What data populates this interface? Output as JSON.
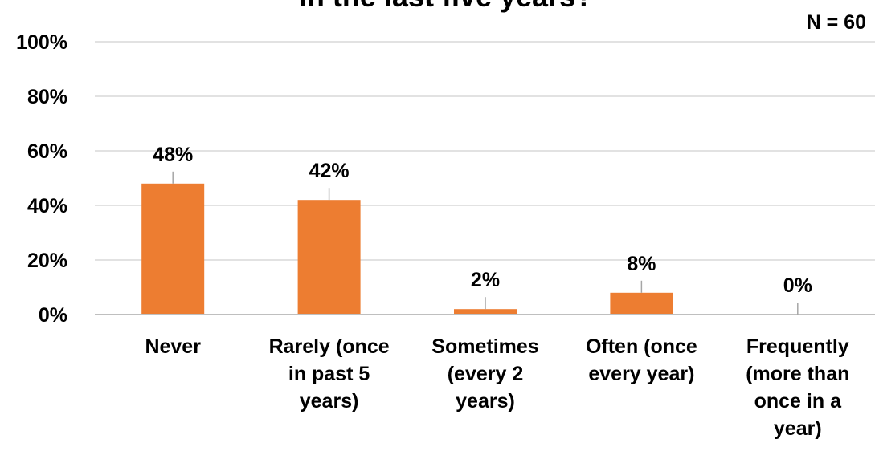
{
  "chart_data": {
    "type": "bar",
    "title": "in the last five years?",
    "sample_size": "N = 60",
    "categories": [
      [
        "Never"
      ],
      [
        "Rarely (once",
        "in past 5",
        "years)"
      ],
      [
        "Sometimes",
        "(every 2",
        "years)"
      ],
      [
        "Often (once",
        "every year)"
      ],
      [
        "Frequently",
        "(more than",
        "once in a",
        "year)"
      ]
    ],
    "values": [
      48,
      42,
      2,
      8,
      0
    ],
    "data_labels": [
      "48%",
      "42%",
      "2%",
      "8%",
      "0%"
    ],
    "ylim": [
      0,
      100
    ],
    "yticks": [
      "0%",
      "20%",
      "40%",
      "60%",
      "80%",
      "100%"
    ],
    "grid": true,
    "legend": "none",
    "colors": {
      "bar": "#ED7D31",
      "grid": "#D9D9D9",
      "axis": "#BFBFBF",
      "leader": "#A6A6A6"
    }
  }
}
